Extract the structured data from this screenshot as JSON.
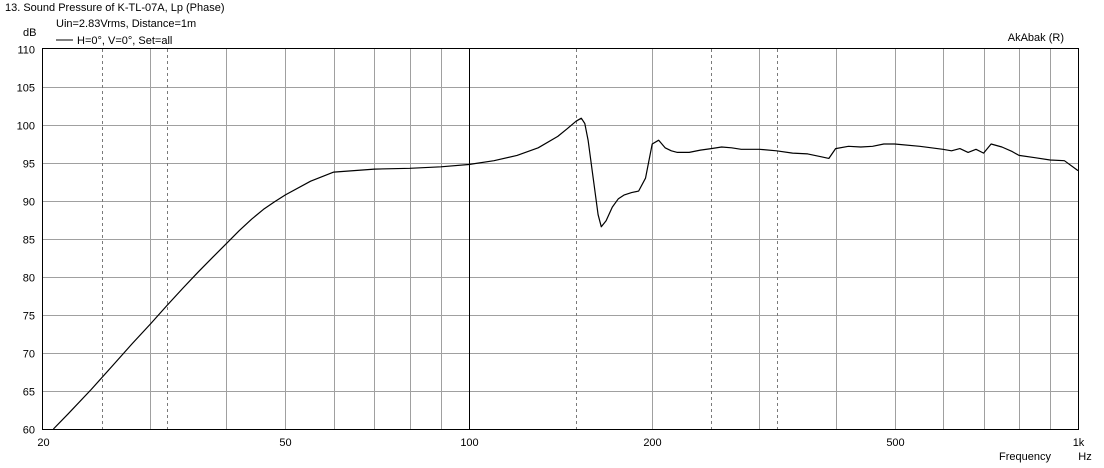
{
  "window": {
    "title": "13. Sound Pressure of K-TL-07A, Lp (Phase)",
    "subtitle": "Uin=2.83Vrms, Distance=1m",
    "watermark": "AkAbak (R)"
  },
  "chart_data": {
    "type": "line",
    "title": "13. Sound Pressure of K-TL-07A, Lp (Phase)",
    "subtitle": "Uin=2.83Vrms, Distance=1m",
    "ylabel": "dB",
    "xlabel": "Frequency",
    "xunit": "Hz",
    "xscale": "log",
    "xlim": [
      20,
      1000
    ],
    "ylim": [
      60,
      110
    ],
    "grid": true,
    "legend_position": "top-left",
    "x_tick_labels": [
      {
        "value": 20,
        "label": "20"
      },
      {
        "value": 50,
        "label": "50"
      },
      {
        "value": 100,
        "label": "100"
      },
      {
        "value": 200,
        "label": "200"
      },
      {
        "value": 500,
        "label": "500"
      },
      {
        "value": 1000,
        "label": "1k"
      }
    ],
    "x_minor_ticks": [
      30,
      40,
      60,
      70,
      80,
      90,
      300,
      400,
      600,
      700,
      800,
      900
    ],
    "x_dashed_ticks": [
      25,
      32,
      150,
      250,
      320
    ],
    "x_emphasis_ticks": [
      100
    ],
    "y_ticks": [
      60,
      65,
      70,
      75,
      80,
      85,
      90,
      95,
      100,
      105,
      110
    ],
    "series": [
      {
        "name": "H=0°, V=0°, Set=all",
        "color": "#000000",
        "x": [
          20.8,
          22,
          24,
          26,
          28,
          30,
          32,
          34,
          36,
          38,
          40,
          42,
          44,
          46,
          48,
          50,
          55,
          60,
          70,
          80,
          90,
          100,
          110,
          120,
          130,
          140,
          145,
          150,
          153,
          155,
          157,
          160,
          163,
          165,
          168,
          172,
          176,
          180,
          185,
          190,
          195,
          200,
          205,
          210,
          215,
          220,
          230,
          240,
          250,
          260,
          270,
          280,
          300,
          320,
          340,
          360,
          380,
          390,
          400,
          420,
          440,
          460,
          480,
          500,
          550,
          600,
          620,
          640,
          660,
          680,
          700,
          720,
          750,
          780,
          800,
          850,
          900,
          950,
          1000
        ],
        "y": [
          60,
          62,
          65.2,
          68.3,
          71.2,
          73.8,
          76.3,
          78.6,
          80.7,
          82.6,
          84.4,
          86.1,
          87.6,
          88.9,
          89.9,
          90.8,
          92.6,
          93.8,
          94.2,
          94.3,
          94.5,
          94.8,
          95.3,
          96.0,
          97.0,
          98.5,
          99.5,
          100.5,
          100.9,
          100.2,
          98.0,
          93.0,
          88.2,
          86.6,
          87.4,
          89.2,
          90.3,
          90.8,
          91.1,
          91.3,
          93.0,
          97.5,
          98.0,
          97.0,
          96.6,
          96.4,
          96.4,
          96.7,
          96.9,
          97.1,
          97.0,
          96.8,
          96.8,
          96.6,
          96.3,
          96.2,
          95.8,
          95.6,
          96.9,
          97.2,
          97.1,
          97.2,
          97.5,
          97.5,
          97.2,
          96.8,
          96.6,
          96.9,
          96.4,
          96.8,
          96.3,
          97.5,
          97.1,
          96.5,
          96.0,
          95.7,
          95.4,
          95.3,
          94.0
        ]
      }
    ]
  }
}
